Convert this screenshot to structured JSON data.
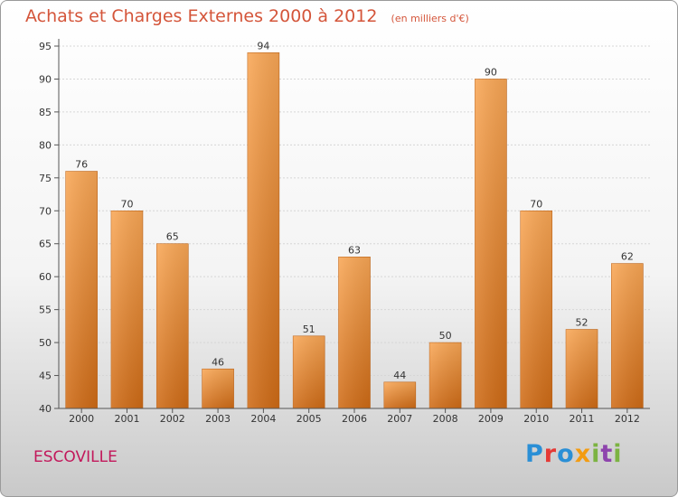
{
  "title": "Achats et Charges Externes 2000 à 2012",
  "unit_note": "(en milliers d'€)",
  "city": "ESCOVILLE",
  "logo": "Proxiti",
  "colors": {
    "bar_light": "#f9a756",
    "bar_dark": "#d2701a",
    "title": "#d4553a",
    "city": "#c2185b"
  },
  "chart_data": {
    "type": "bar",
    "title": "Achats et Charges Externes 2000 à 2012",
    "subtitle": "(en milliers d'€)",
    "categories": [
      "2000",
      "2001",
      "2002",
      "2003",
      "2004",
      "2005",
      "2006",
      "2007",
      "2008",
      "2009",
      "2010",
      "2011",
      "2012"
    ],
    "values": [
      76,
      70,
      65,
      46,
      94,
      51,
      63,
      44,
      50,
      90,
      70,
      52,
      62
    ],
    "ylim": [
      40,
      95
    ],
    "yticks": [
      40,
      45,
      50,
      55,
      60,
      65,
      70,
      75,
      80,
      85,
      90,
      95
    ],
    "grid": true,
    "xlabel": "",
    "ylabel": ""
  }
}
